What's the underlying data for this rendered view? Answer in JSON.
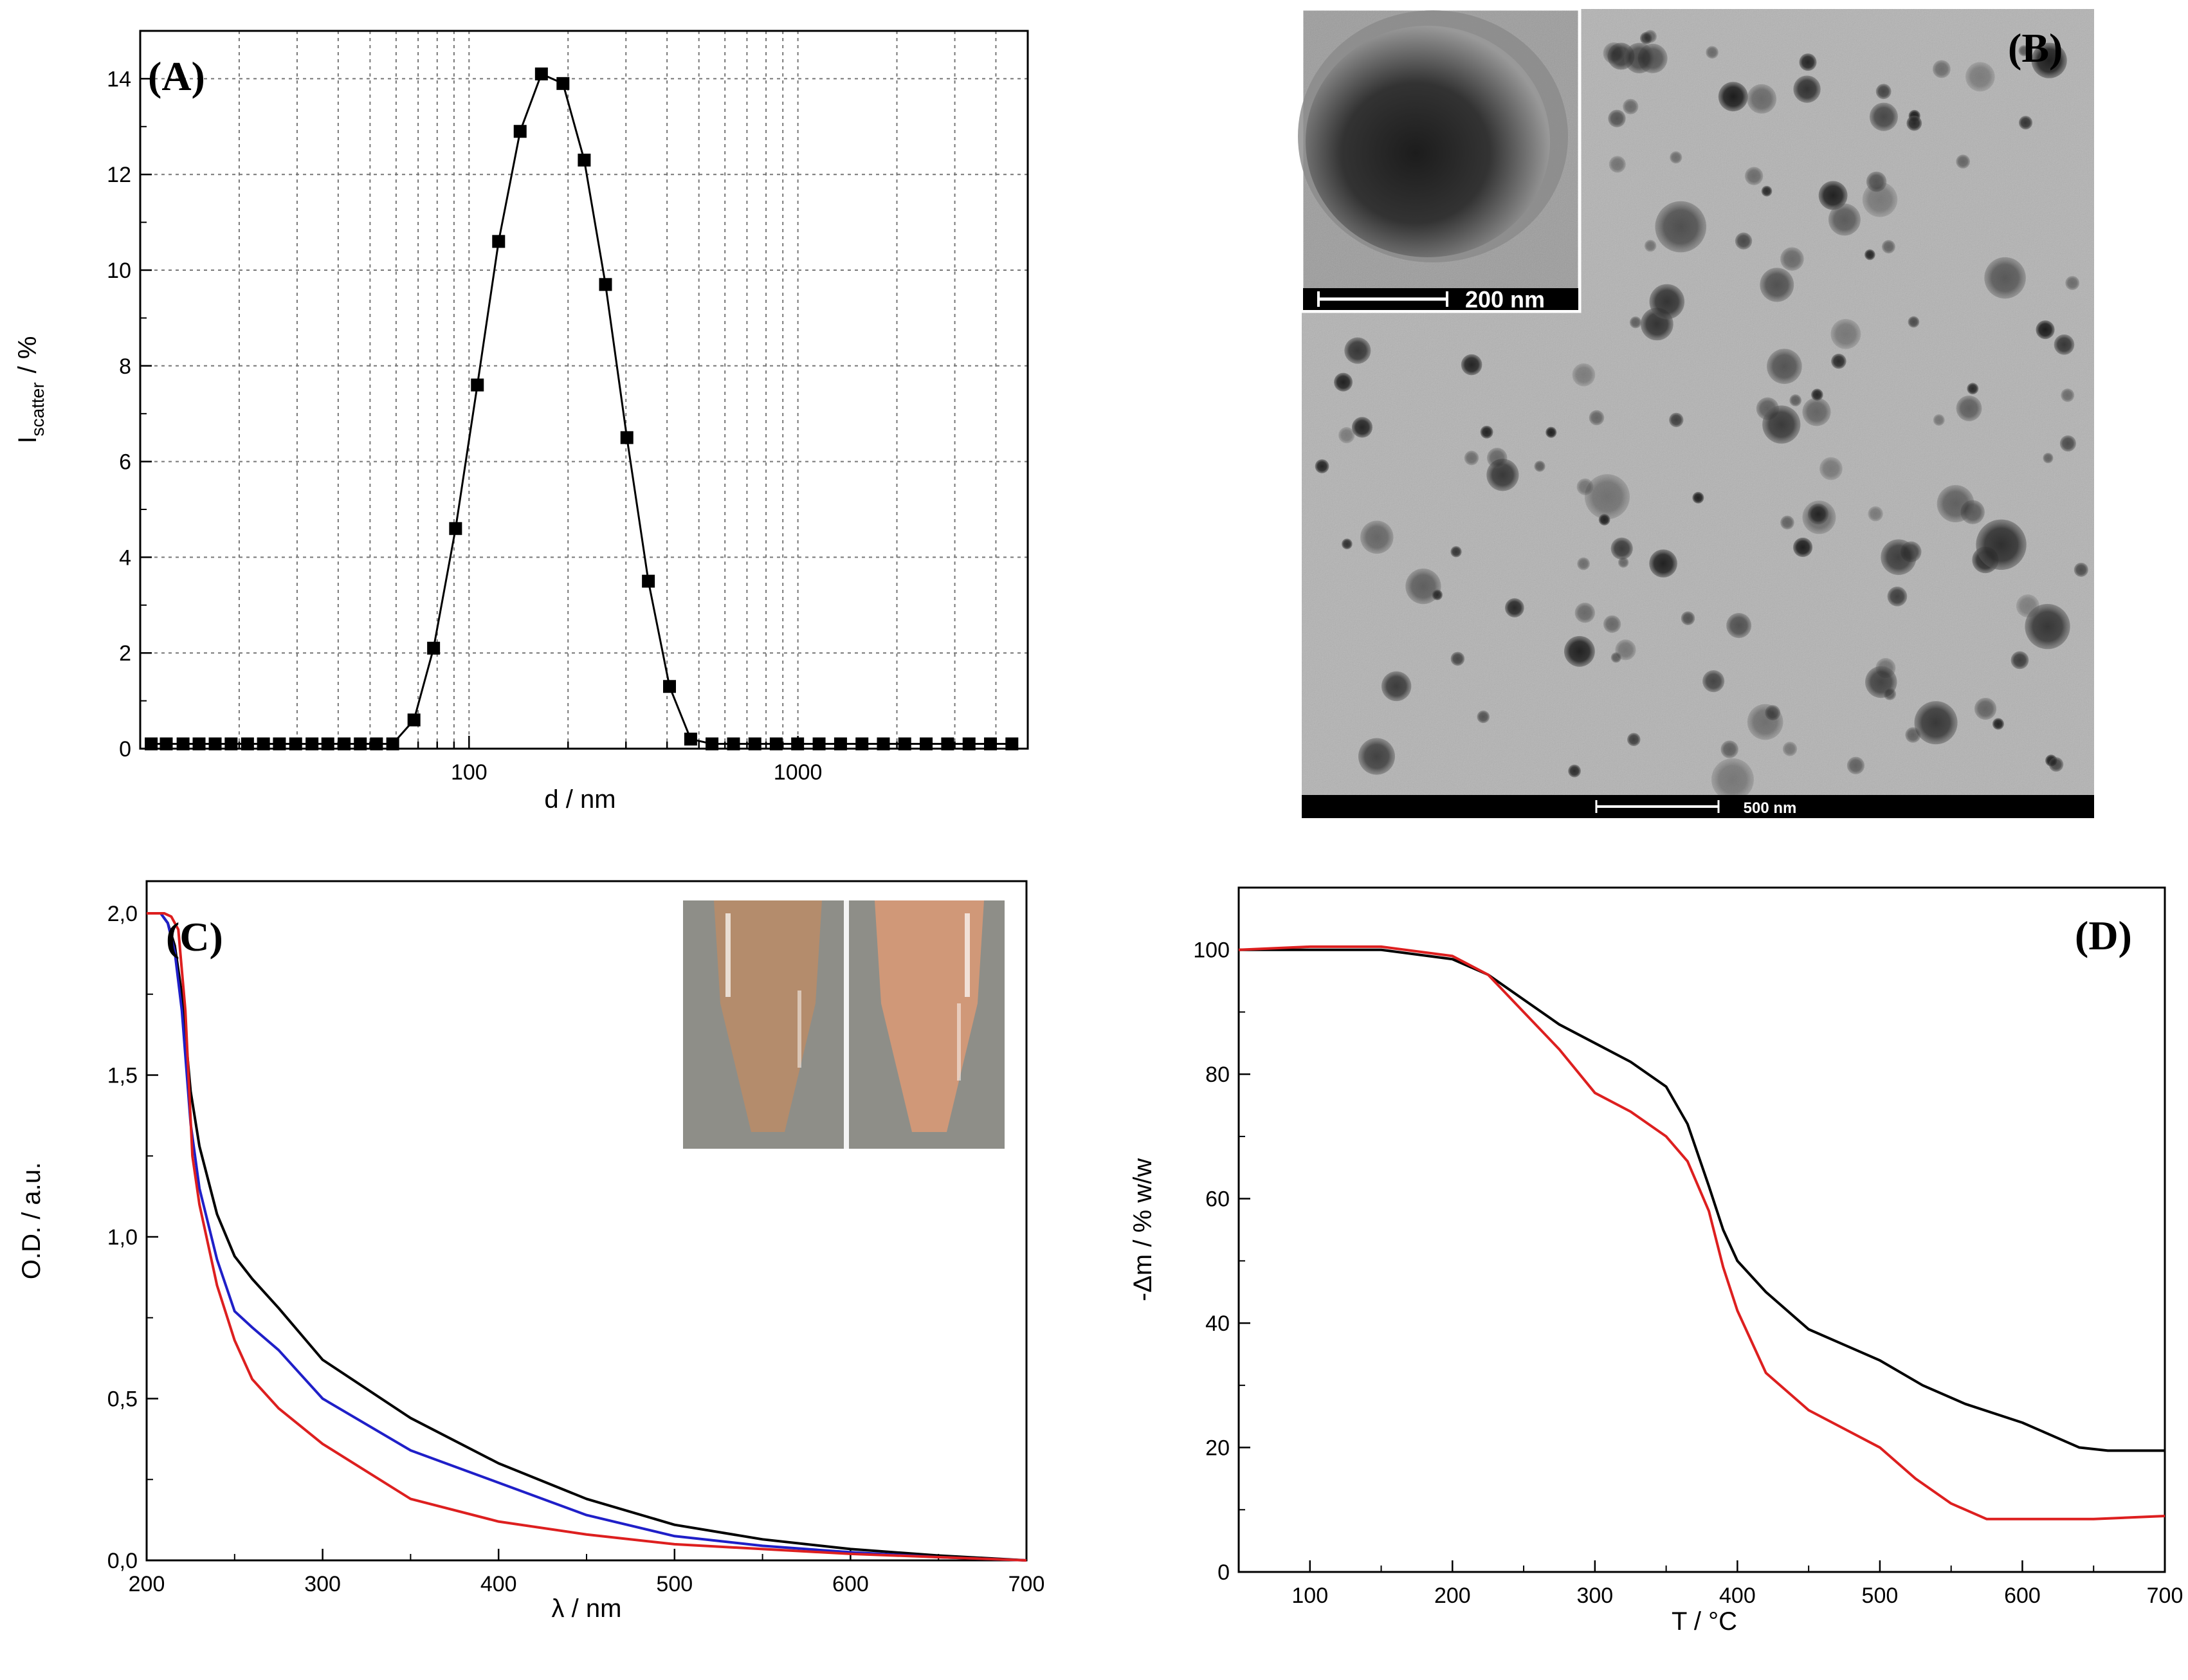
{
  "chart_data": [
    {
      "panel": "(A)",
      "type": "scatter",
      "xscale": "log",
      "xlabel": "d / nm",
      "ylabel_main": "I",
      "ylabel_sub": "scatter",
      "ylabel_unit": "/  %",
      "xlim": [
        10,
        5000
      ],
      "ylim": [
        0,
        15
      ],
      "grid": true,
      "xticks": [
        100,
        1000
      ],
      "xtick_labels": [
        "100",
        "1000"
      ],
      "yticks": [
        0,
        2,
        4,
        6,
        8,
        10,
        12,
        14
      ],
      "ytick_labels": [
        "0",
        "2",
        "4",
        "6",
        "8",
        "10",
        "12",
        "14"
      ],
      "x": [
        10.8,
        12.0,
        13.5,
        15.1,
        16.9,
        18.9,
        21.2,
        23.7,
        26.5,
        29.7,
        33.3,
        37.2,
        41.7,
        46.7,
        52.3,
        58.6,
        68,
        78,
        91,
        106,
        123,
        143,
        166,
        193,
        224,
        260,
        302,
        351,
        407,
        472,
        548,
        637,
        740,
        859,
        998,
        1160,
        1348,
        1566,
        1819,
        2113,
        2455,
        2853,
        3315,
        3851,
        4474
      ],
      "y": [
        0.1,
        0.1,
        0.1,
        0.1,
        0.1,
        0.1,
        0.1,
        0.1,
        0.1,
        0.1,
        0.1,
        0.1,
        0.1,
        0.1,
        0.1,
        0.1,
        0.6,
        2.1,
        4.6,
        7.6,
        10.6,
        12.9,
        14.1,
        13.9,
        12.3,
        9.7,
        6.5,
        3.5,
        1.3,
        0.2,
        0.1,
        0.1,
        0.1,
        0.1,
        0.1,
        0.1,
        0.1,
        0.1,
        0.1,
        0.1,
        0.1,
        0.1,
        0.1,
        0.1,
        0.1
      ]
    },
    {
      "panel": "(B)",
      "type": "image",
      "inset_scale_label": "200 nm",
      "main_scale_label": "500 nm"
    },
    {
      "panel": "(C)",
      "type": "line",
      "xlabel": "λ / nm",
      "ylabel": "O.D. / a.u.",
      "xlim": [
        200,
        700
      ],
      "ylim": [
        0,
        2.0
      ],
      "xticks": [
        200,
        300,
        400,
        500,
        600,
        700
      ],
      "xtick_labels": [
        "200",
        "300",
        "400",
        "500",
        "600",
        "700"
      ],
      "yticks": [
        0,
        0.5,
        1.0,
        1.5,
        2.0
      ],
      "ytick_labels": [
        "0,0",
        "0,5",
        "1,0",
        "1,5",
        "2,0"
      ],
      "series": [
        {
          "name": "black",
          "color": "#000000",
          "x": [
            200,
            208,
            212,
            216,
            220,
            225,
            230,
            240,
            250,
            260,
            275,
            300,
            350,
            400,
            450,
            500,
            550,
            600,
            650,
            700
          ],
          "y": [
            2.0,
            2.0,
            1.97,
            1.9,
            1.75,
            1.45,
            1.28,
            1.07,
            0.94,
            0.87,
            0.78,
            0.62,
            0.44,
            0.3,
            0.19,
            0.11,
            0.065,
            0.035,
            0.015,
            0.0
          ]
        },
        {
          "name": "blue",
          "color": "#1f1fc8",
          "x": [
            200,
            208,
            212,
            216,
            220,
            225,
            230,
            240,
            250,
            260,
            275,
            300,
            350,
            400,
            450,
            500,
            550,
            600,
            650,
            700
          ],
          "y": [
            2.0,
            2.0,
            1.97,
            1.88,
            1.7,
            1.35,
            1.15,
            0.93,
            0.77,
            0.72,
            0.65,
            0.5,
            0.34,
            0.24,
            0.14,
            0.075,
            0.045,
            0.025,
            0.01,
            0.0
          ]
        },
        {
          "name": "red",
          "color": "#dd1f1f",
          "x": [
            200,
            210,
            214,
            218,
            222,
            226,
            230,
            240,
            250,
            260,
            275,
            300,
            350,
            400,
            450,
            500,
            550,
            600,
            650,
            700
          ],
          "y": [
            2.0,
            2.0,
            1.99,
            1.95,
            1.7,
            1.25,
            1.1,
            0.85,
            0.68,
            0.56,
            0.47,
            0.36,
            0.19,
            0.12,
            0.08,
            0.05,
            0.035,
            0.02,
            0.01,
            0.0
          ]
        }
      ]
    },
    {
      "panel": "(D)",
      "type": "line",
      "xlabel": "T  / °C",
      "ylabel": "-Δm  / % w/w",
      "xlim": [
        50,
        700
      ],
      "ylim": [
        0,
        110
      ],
      "xticks": [
        100,
        200,
        300,
        400,
        500,
        600,
        700
      ],
      "xtick_labels": [
        "100",
        "200",
        "300",
        "400",
        "500",
        "600",
        "700"
      ],
      "yticks": [
        0,
        20,
        40,
        60,
        80,
        100
      ],
      "ytick_labels": [
        "0",
        "20",
        "40",
        "60",
        "80",
        "100"
      ],
      "series": [
        {
          "name": "black",
          "color": "#000000",
          "x": [
            50,
            100,
            150,
            200,
            225,
            250,
            275,
            300,
            325,
            350,
            365,
            380,
            390,
            400,
            420,
            450,
            475,
            500,
            530,
            560,
            600,
            640,
            660,
            700
          ],
          "y": [
            100,
            100,
            100,
            98.5,
            96,
            92,
            88,
            85,
            82,
            78,
            72,
            62,
            55,
            50,
            45,
            39,
            36.5,
            34,
            30,
            27,
            24,
            20,
            19.5,
            19.5
          ]
        },
        {
          "name": "red",
          "color": "#dd1f1f",
          "x": [
            50,
            100,
            150,
            200,
            225,
            250,
            275,
            300,
            325,
            350,
            365,
            380,
            390,
            400,
            420,
            450,
            475,
            500,
            525,
            550,
            575,
            600,
            650,
            700
          ],
          "y": [
            100,
            100.5,
            100.5,
            99,
            96,
            90,
            84,
            77,
            74,
            70,
            66,
            58,
            49,
            42,
            32,
            26,
            23,
            20,
            15,
            11,
            8.5,
            8.5,
            8.5,
            9
          ]
        }
      ]
    }
  ]
}
